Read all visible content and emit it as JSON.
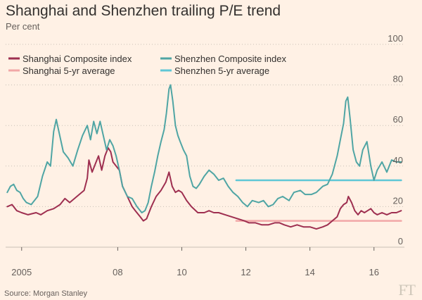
{
  "title": "Shanghai and Shenzhen trailing P/E trend",
  "subtitle": "Per cent",
  "source": "Source: Morgan Stanley",
  "logo": "FT",
  "colors": {
    "background": "#fff1e5",
    "grid": "#c8c0b5",
    "shanghai": "#9e2f50",
    "shenzhen": "#4fa5a4",
    "shanghai_avg": "#f2a7a7",
    "shenzhen_avg": "#5fc7d6",
    "text": "#33302e",
    "muted": "#66605c"
  },
  "chart_data": {
    "type": "line",
    "title": "Shanghai and Shenzhen trailing P/E trend",
    "ylabel": "Per cent",
    "ylim": [
      0,
      100
    ],
    "yticks": [
      0,
      20,
      40,
      60,
      80,
      100
    ],
    "xlim": [
      2004.5,
      2016.95
    ],
    "xticks": [
      {
        "value": 2005,
        "label": "2005"
      },
      {
        "value": 2008,
        "label": "08"
      },
      {
        "value": 2010,
        "label": "10"
      },
      {
        "value": 2012,
        "label": "12"
      },
      {
        "value": 2014,
        "label": "14"
      },
      {
        "value": 2016,
        "label": "16"
      }
    ],
    "grid": true,
    "legend_position": "top-left",
    "series": [
      {
        "name": "Shanghai Composite index",
        "color_key": "shanghai",
        "points": [
          [
            2004.55,
            20
          ],
          [
            2004.7,
            21
          ],
          [
            2004.85,
            18
          ],
          [
            2005.0,
            17
          ],
          [
            2005.2,
            16
          ],
          [
            2005.45,
            17
          ],
          [
            2005.6,
            16
          ],
          [
            2005.8,
            18
          ],
          [
            2006.0,
            19
          ],
          [
            2006.2,
            21
          ],
          [
            2006.35,
            24
          ],
          [
            2006.5,
            22
          ],
          [
            2006.65,
            24
          ],
          [
            2006.8,
            26
          ],
          [
            2006.95,
            28
          ],
          [
            2007.05,
            34
          ],
          [
            2007.1,
            43
          ],
          [
            2007.2,
            37
          ],
          [
            2007.3,
            41
          ],
          [
            2007.4,
            45
          ],
          [
            2007.5,
            38
          ],
          [
            2007.6,
            45
          ],
          [
            2007.7,
            49
          ],
          [
            2007.78,
            47
          ],
          [
            2007.85,
            42
          ],
          [
            2007.95,
            40
          ],
          [
            2008.05,
            38
          ],
          [
            2008.15,
            30
          ],
          [
            2008.3,
            25
          ],
          [
            2008.45,
            20
          ],
          [
            2008.55,
            18
          ],
          [
            2008.7,
            15
          ],
          [
            2008.8,
            13
          ],
          [
            2008.9,
            14
          ],
          [
            2009.05,
            20
          ],
          [
            2009.2,
            25
          ],
          [
            2009.35,
            28
          ],
          [
            2009.5,
            32
          ],
          [
            2009.6,
            37
          ],
          [
            2009.7,
            30
          ],
          [
            2009.8,
            27
          ],
          [
            2009.9,
            28
          ],
          [
            2010.0,
            27
          ],
          [
            2010.15,
            23
          ],
          [
            2010.3,
            20
          ],
          [
            2010.5,
            17
          ],
          [
            2010.7,
            17
          ],
          [
            2010.85,
            18
          ],
          [
            2011.0,
            17
          ],
          [
            2011.15,
            17
          ],
          [
            2011.35,
            16
          ],
          [
            2011.55,
            15
          ],
          [
            2011.75,
            14
          ],
          [
            2011.95,
            13
          ],
          [
            2012.1,
            12
          ],
          [
            2012.3,
            12
          ],
          [
            2012.5,
            11
          ],
          [
            2012.7,
            11
          ],
          [
            2012.9,
            12
          ],
          [
            2013.05,
            12
          ],
          [
            2013.2,
            11
          ],
          [
            2013.4,
            10
          ],
          [
            2013.6,
            11
          ],
          [
            2013.8,
            10
          ],
          [
            2014.0,
            10
          ],
          [
            2014.2,
            9
          ],
          [
            2014.4,
            10
          ],
          [
            2014.55,
            11
          ],
          [
            2014.7,
            13
          ],
          [
            2014.85,
            15
          ],
          [
            2014.95,
            19
          ],
          [
            2015.05,
            21
          ],
          [
            2015.15,
            22
          ],
          [
            2015.2,
            25
          ],
          [
            2015.3,
            22
          ],
          [
            2015.4,
            18
          ],
          [
            2015.5,
            16
          ],
          [
            2015.6,
            18
          ],
          [
            2015.7,
            17
          ],
          [
            2015.8,
            18
          ],
          [
            2015.9,
            19
          ],
          [
            2016.0,
            17
          ],
          [
            2016.1,
            16
          ],
          [
            2016.25,
            17
          ],
          [
            2016.4,
            16
          ],
          [
            2016.55,
            17
          ],
          [
            2016.7,
            17
          ],
          [
            2016.85,
            18
          ]
        ]
      },
      {
        "name": "Shenzhen Composite index",
        "color_key": "shenzhen",
        "points": [
          [
            2004.55,
            27
          ],
          [
            2004.65,
            30
          ],
          [
            2004.75,
            31
          ],
          [
            2004.85,
            28
          ],
          [
            2004.95,
            27
          ],
          [
            2005.05,
            24
          ],
          [
            2005.15,
            22
          ],
          [
            2005.3,
            21
          ],
          [
            2005.5,
            25
          ],
          [
            2005.65,
            35
          ],
          [
            2005.8,
            42
          ],
          [
            2005.9,
            40
          ],
          [
            2006.0,
            57
          ],
          [
            2006.08,
            63
          ],
          [
            2006.15,
            58
          ],
          [
            2006.3,
            47
          ],
          [
            2006.45,
            44
          ],
          [
            2006.6,
            40
          ],
          [
            2006.75,
            48
          ],
          [
            2006.9,
            55
          ],
          [
            2007.05,
            60
          ],
          [
            2007.15,
            53
          ],
          [
            2007.25,
            62
          ],
          [
            2007.35,
            56
          ],
          [
            2007.45,
            62
          ],
          [
            2007.55,
            55
          ],
          [
            2007.65,
            48
          ],
          [
            2007.75,
            53
          ],
          [
            2007.85,
            50
          ],
          [
            2007.95,
            45
          ],
          [
            2008.05,
            38
          ],
          [
            2008.15,
            30
          ],
          [
            2008.3,
            25
          ],
          [
            2008.45,
            24
          ],
          [
            2008.6,
            20
          ],
          [
            2008.75,
            17
          ],
          [
            2008.85,
            18
          ],
          [
            2008.95,
            22
          ],
          [
            2009.05,
            30
          ],
          [
            2009.15,
            37
          ],
          [
            2009.25,
            45
          ],
          [
            2009.35,
            52
          ],
          [
            2009.45,
            58
          ],
          [
            2009.52,
            66
          ],
          [
            2009.6,
            78
          ],
          [
            2009.65,
            80
          ],
          [
            2009.72,
            72
          ],
          [
            2009.8,
            60
          ],
          [
            2009.88,
            55
          ],
          [
            2009.95,
            52
          ],
          [
            2010.05,
            48
          ],
          [
            2010.15,
            45
          ],
          [
            2010.25,
            35
          ],
          [
            2010.35,
            30
          ],
          [
            2010.45,
            29
          ],
          [
            2010.55,
            31
          ],
          [
            2010.7,
            35
          ],
          [
            2010.85,
            38
          ],
          [
            2011.0,
            36
          ],
          [
            2011.15,
            33
          ],
          [
            2011.3,
            34
          ],
          [
            2011.45,
            30
          ],
          [
            2011.6,
            27
          ],
          [
            2011.75,
            25
          ],
          [
            2011.9,
            22
          ],
          [
            2012.05,
            20
          ],
          [
            2012.2,
            23
          ],
          [
            2012.4,
            22
          ],
          [
            2012.55,
            23
          ],
          [
            2012.7,
            20
          ],
          [
            2012.85,
            21
          ],
          [
            2013.0,
            24
          ],
          [
            2013.15,
            25
          ],
          [
            2013.35,
            23
          ],
          [
            2013.5,
            27
          ],
          [
            2013.7,
            28
          ],
          [
            2013.85,
            26
          ],
          [
            2014.05,
            26
          ],
          [
            2014.2,
            27
          ],
          [
            2014.4,
            30
          ],
          [
            2014.55,
            31
          ],
          [
            2014.7,
            36
          ],
          [
            2014.85,
            45
          ],
          [
            2014.95,
            53
          ],
          [
            2015.05,
            61
          ],
          [
            2015.12,
            72
          ],
          [
            2015.18,
            74
          ],
          [
            2015.25,
            64
          ],
          [
            2015.35,
            48
          ],
          [
            2015.45,
            42
          ],
          [
            2015.55,
            40
          ],
          [
            2015.65,
            48
          ],
          [
            2015.78,
            52
          ],
          [
            2015.9,
            40
          ],
          [
            2016.0,
            33
          ],
          [
            2016.1,
            38
          ],
          [
            2016.25,
            42
          ],
          [
            2016.4,
            37
          ],
          [
            2016.55,
            43
          ],
          [
            2016.7,
            42
          ],
          [
            2016.85,
            42
          ]
        ]
      },
      {
        "name": "Shanghai 5-yr average",
        "color_key": "shanghai_avg",
        "points": [
          [
            2011.7,
            13
          ],
          [
            2016.85,
            13
          ]
        ]
      },
      {
        "name": "Shenzhen 5-yr average",
        "color_key": "shenzhen_avg",
        "points": [
          [
            2011.7,
            33
          ],
          [
            2016.85,
            33
          ]
        ]
      }
    ]
  }
}
